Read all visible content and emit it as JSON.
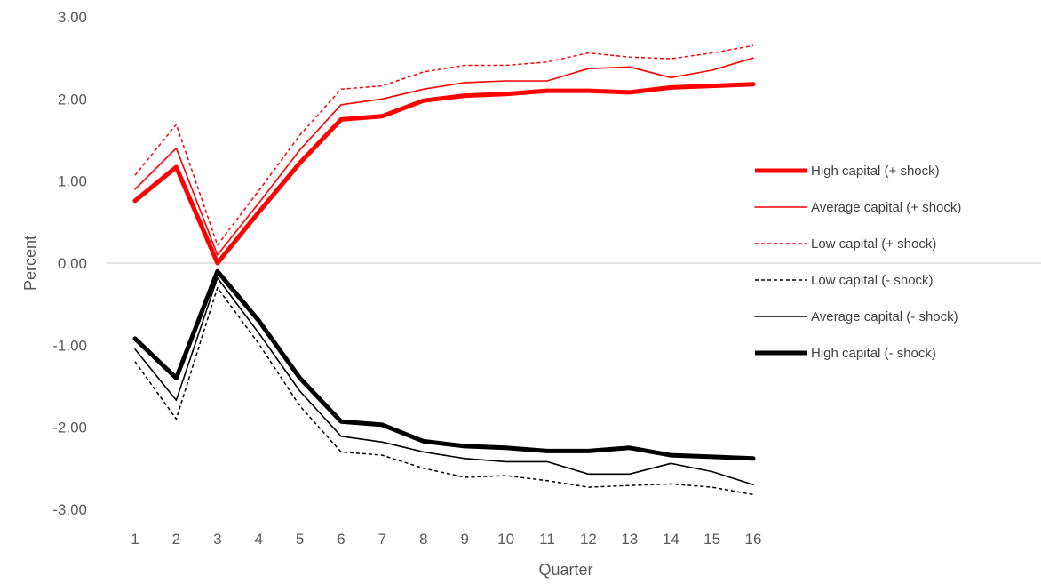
{
  "chart_data": {
    "type": "line",
    "title": "",
    "xlabel": "Quarter",
    "ylabel": "Percent",
    "ylim": [
      -3.0,
      3.0
    ],
    "yticks": [
      "3.00",
      "2.00",
      "1.00",
      "0.00",
      "-1.00",
      "-2.00",
      "-3.00"
    ],
    "categories": [
      "1",
      "2",
      "3",
      "4",
      "5",
      "6",
      "7",
      "8",
      "9",
      "10",
      "11",
      "12",
      "13",
      "14",
      "15",
      "16"
    ],
    "grid": "zero line only",
    "legend_position": "right-center",
    "series": [
      {
        "name": "High capital (+ shock)",
        "color": "#ff0000",
        "style": "thick",
        "values": [
          0.76,
          1.17,
          0.0,
          0.62,
          1.22,
          1.75,
          1.79,
          1.98,
          2.04,
          2.06,
          2.1,
          2.1,
          2.08,
          2.14,
          2.16,
          2.18
        ]
      },
      {
        "name": "Average capital (+ shock)",
        "color": "#ff0000",
        "style": "thin",
        "values": [
          0.9,
          1.4,
          0.1,
          0.73,
          1.38,
          1.93,
          2.0,
          2.12,
          2.2,
          2.22,
          2.22,
          2.37,
          2.39,
          2.26,
          2.35,
          2.5
        ]
      },
      {
        "name": "Low capital (+ shock)",
        "color": "#ff0000",
        "style": "dashed",
        "values": [
          1.07,
          1.69,
          0.22,
          0.88,
          1.56,
          2.12,
          2.16,
          2.33,
          2.41,
          2.41,
          2.45,
          2.56,
          2.51,
          2.49,
          2.56,
          2.65
        ]
      },
      {
        "name": "Low capital (- shock)",
        "color": "#000000",
        "style": "dashed",
        "values": [
          -1.2,
          -1.9,
          -0.3,
          -0.98,
          -1.74,
          -2.3,
          -2.34,
          -2.5,
          -2.61,
          -2.59,
          -2.65,
          -2.73,
          -2.71,
          -2.69,
          -2.73,
          -2.82
        ]
      },
      {
        "name": "Average capital (- shock)",
        "color": "#000000",
        "style": "thin",
        "values": [
          -1.05,
          -1.67,
          -0.18,
          -0.85,
          -1.56,
          -2.11,
          -2.18,
          -2.3,
          -2.38,
          -2.42,
          -2.42,
          -2.57,
          -2.57,
          -2.44,
          -2.54,
          -2.7
        ]
      },
      {
        "name": "High capital (- shock)",
        "color": "#000000",
        "style": "thick",
        "values": [
          -0.92,
          -1.4,
          -0.1,
          -0.7,
          -1.4,
          -1.93,
          -1.97,
          -2.17,
          -2.23,
          -2.25,
          -2.29,
          -2.29,
          -2.25,
          -2.34,
          -2.36,
          -2.38
        ]
      }
    ]
  }
}
